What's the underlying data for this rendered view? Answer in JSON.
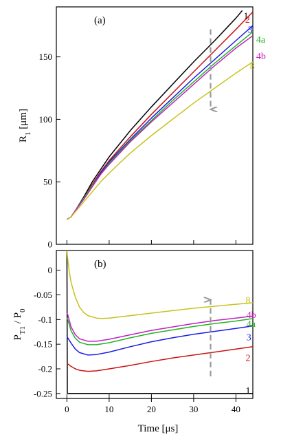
{
  "colors": {
    "s1": "#000000",
    "s2": "#cc1111",
    "s3": "#1a1ae6",
    "s4a": "#1fb51f",
    "s4b": "#c21fc2",
    "s8": "#c8c21a",
    "arrow": "#999999"
  },
  "xaxis": {
    "label": "Time  [μs]",
    "ticks": [
      0,
      10,
      20,
      30,
      40
    ],
    "range": [
      -2.5,
      44
    ]
  },
  "chart_data": [
    {
      "type": "line",
      "panel": "(a)",
      "ylabel": "R",
      "ylabel_sub": "1",
      "ylabel_unit": "[μm]",
      "xlim": [
        -2.5,
        44
      ],
      "ylim": [
        0,
        190
      ],
      "yticks": [
        0,
        50,
        100,
        150
      ],
      "arrow": {
        "x": 34,
        "y_from": 172,
        "y_to": 108,
        "direction": "down"
      },
      "series": [
        {
          "name": "1",
          "color_key": "s1",
          "label_at": [
            41.8,
            183
          ],
          "x": [
            0,
            1,
            2,
            4,
            6,
            8,
            10,
            15,
            20,
            25,
            30,
            35,
            40,
            41.5
          ],
          "y": [
            20,
            22,
            27,
            38,
            50,
            60,
            70,
            91,
            110,
            128,
            146,
            163,
            181,
            187
          ]
        },
        {
          "name": "2",
          "color_key": "s2",
          "label_at": [
            42.2,
            180
          ],
          "x": [
            0,
            1,
            2,
            4,
            6,
            8,
            10,
            15,
            20,
            25,
            30,
            35,
            40,
            44
          ],
          "y": [
            20,
            22,
            27,
            37,
            48,
            58,
            67,
            86,
            104,
            121,
            138,
            155,
            172,
            186
          ]
        },
        {
          "name": "3",
          "color_key": "s3",
          "label_at": [
            42.8,
            172
          ],
          "x": [
            0,
            1,
            2,
            4,
            6,
            8,
            10,
            15,
            20,
            25,
            30,
            35,
            40,
            44
          ],
          "y": [
            20,
            22,
            27,
            37,
            47,
            57,
            66,
            84,
            101,
            117,
            133,
            148,
            163,
            175
          ]
        },
        {
          "name": "4a",
          "color_key": "s4a",
          "label_at": [
            44.8,
            164
          ],
          "x": [
            0,
            1,
            2,
            4,
            6,
            8,
            10,
            15,
            20,
            25,
            30,
            35,
            40,
            44
          ],
          "y": [
            20,
            22,
            27,
            37,
            47,
            56,
            65,
            83,
            99,
            115,
            130,
            145,
            159,
            170
          ]
        },
        {
          "name": "4b",
          "color_key": "s4b",
          "label_at": [
            44.8,
            151
          ],
          "x": [
            0,
            1,
            2,
            4,
            6,
            8,
            10,
            15,
            20,
            25,
            30,
            35,
            40,
            44
          ],
          "y": [
            20,
            22,
            27,
            36,
            46,
            56,
            64,
            82,
            98,
            113,
            128,
            143,
            157,
            167
          ]
        },
        {
          "name": "8",
          "color_key": "s8",
          "label_at": [
            43.3,
            143
          ],
          "x": [
            0,
            1,
            2,
            4,
            6,
            8,
            10,
            15,
            20,
            25,
            30,
            35,
            40,
            44
          ],
          "y": [
            20,
            22,
            26,
            34,
            42,
            50,
            57,
            73,
            87,
            100,
            113,
            125,
            137,
            146
          ]
        }
      ]
    },
    {
      "type": "line",
      "panel": "(b)",
      "ylabel": "P",
      "ylabel_sub": "T1",
      "ylabel_mid": " / P",
      "ylabel_sub2": "0",
      "xlim": [
        -2.5,
        44
      ],
      "ylim": [
        -0.26,
        0.04
      ],
      "yticks": [
        0,
        -0.05,
        -0.1,
        -0.15,
        -0.2,
        -0.25
      ],
      "ytick_labels": [
        "0",
        "-0.05",
        "-0.1",
        "-0.15",
        "-0.2",
        "-0.25"
      ],
      "arrow": {
        "x": 34,
        "y_from": -0.215,
        "y_to": -0.06,
        "direction": "up"
      },
      "series": [
        {
          "name": "1",
          "color_key": "s1",
          "label_at": [
            42.3,
            -0.243
          ],
          "x": [
            0,
            0.05,
            0.1,
            44
          ],
          "y": [
            0.04,
            -0.1,
            -0.25,
            -0.25
          ]
        },
        {
          "name": "2",
          "color_key": "s2",
          "label_at": [
            42.3,
            -0.177
          ],
          "x": [
            0,
            0.2,
            1,
            2,
            3,
            5,
            7,
            10,
            15,
            20,
            25,
            30,
            35,
            40,
            44
          ],
          "y": [
            -0.19,
            -0.19,
            -0.195,
            -0.2,
            -0.203,
            -0.205,
            -0.204,
            -0.2,
            -0.193,
            -0.185,
            -0.178,
            -0.172,
            -0.166,
            -0.16,
            -0.155
          ]
        },
        {
          "name": "3",
          "color_key": "s3",
          "label_at": [
            42.5,
            -0.135
          ],
          "x": [
            0,
            0.2,
            1,
            2,
            3,
            5,
            7,
            10,
            15,
            20,
            25,
            30,
            35,
            40,
            44
          ],
          "y": [
            -0.135,
            -0.137,
            -0.148,
            -0.16,
            -0.167,
            -0.172,
            -0.171,
            -0.166,
            -0.155,
            -0.145,
            -0.137,
            -0.13,
            -0.124,
            -0.118,
            -0.113
          ]
        },
        {
          "name": "4a",
          "color_key": "s4a",
          "label_at": [
            42.5,
            -0.108
          ],
          "x": [
            0,
            0.2,
            1,
            2,
            3,
            5,
            7,
            10,
            15,
            20,
            25,
            30,
            35,
            40,
            44
          ],
          "y": [
            -0.098,
            -0.1,
            -0.123,
            -0.138,
            -0.146,
            -0.151,
            -0.151,
            -0.147,
            -0.137,
            -0.128,
            -0.121,
            -0.114,
            -0.108,
            -0.103,
            -0.098
          ]
        },
        {
          "name": "4b",
          "color_key": "s4b",
          "label_at": [
            42.5,
            -0.09
          ],
          "x": [
            0,
            0.2,
            1,
            2,
            3,
            5,
            7,
            10,
            15,
            20,
            25,
            30,
            35,
            40,
            44
          ],
          "y": [
            -0.087,
            -0.09,
            -0.115,
            -0.131,
            -0.139,
            -0.144,
            -0.144,
            -0.14,
            -0.131,
            -0.122,
            -0.115,
            -0.108,
            -0.102,
            -0.097,
            -0.093
          ]
        },
        {
          "name": "8",
          "color_key": "s8",
          "label_at": [
            42.3,
            -0.06
          ],
          "x": [
            0,
            0.1,
            0.5,
            1,
            2,
            3,
            4,
            5,
            7,
            8,
            10,
            15,
            20,
            25,
            30,
            35,
            40,
            44
          ],
          "y": [
            0.04,
            0.03,
            0.0,
            -0.025,
            -0.055,
            -0.075,
            -0.086,
            -0.092,
            -0.097,
            -0.098,
            -0.097,
            -0.092,
            -0.087,
            -0.082,
            -0.077,
            -0.073,
            -0.069,
            -0.066
          ]
        }
      ]
    }
  ]
}
